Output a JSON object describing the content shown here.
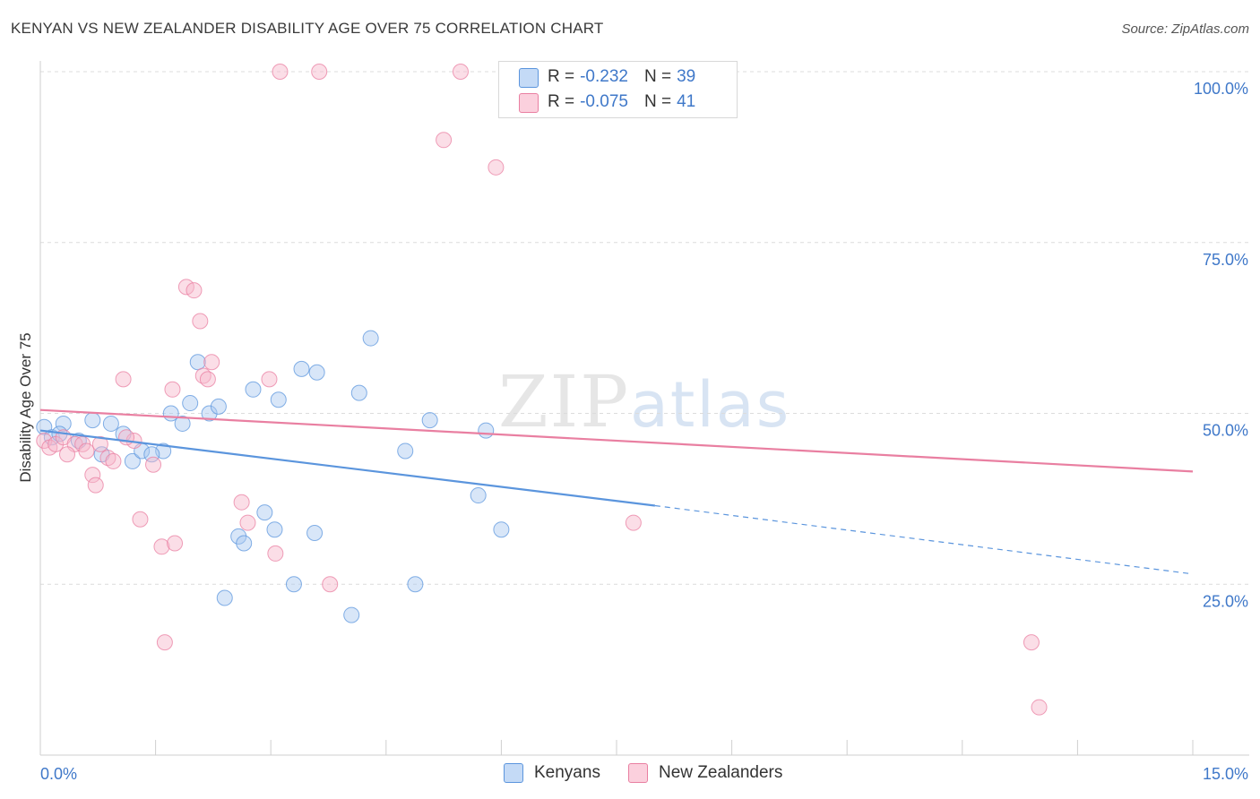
{
  "header": {
    "title": "KENYAN VS NEW ZEALANDER DISABILITY AGE OVER 75 CORRELATION CHART",
    "source": "Source: ZipAtlas.com"
  },
  "watermark": {
    "zip": "ZIP",
    "atlas": "atlas"
  },
  "legend": {
    "rows": [
      {
        "r_label": "R =",
        "r_value": "-0.232",
        "n_label": "N =",
        "n_value": "39",
        "color": "#a9c8f0"
      },
      {
        "r_label": "R =",
        "r_value": "-0.075",
        "n_label": "N =",
        "n_value": "41",
        "color": "#f6b6ca"
      }
    ]
  },
  "bottom_legend": [
    {
      "label": "Kenyans",
      "color": "#a9c8f0"
    },
    {
      "label": "New Zealanders",
      "color": "#f6b6ca"
    }
  ],
  "chart_data": {
    "type": "scatter",
    "title": "KENYAN VS NEW ZEALANDER DISABILITY AGE OVER 75 CORRELATION CHART",
    "xlabel": "",
    "ylabel": "Disability Age Over 75",
    "xlim": [
      0,
      15
    ],
    "ylim": [
      0,
      100
    ],
    "x_tick_labels": [
      "0.0%",
      "15.0%"
    ],
    "y_ticks": [
      25,
      50,
      75,
      100
    ],
    "y_tick_labels": [
      "25.0%",
      "50.0%",
      "75.0%",
      "100.0%"
    ],
    "grid": "horizontal dashed",
    "legend_position": "top-center",
    "series": [
      {
        "name": "Kenyans",
        "color": "#5b95dd",
        "points": [
          [
            0.05,
            48.0
          ],
          [
            0.15,
            46.5
          ],
          [
            0.3,
            48.5
          ],
          [
            0.5,
            46.0
          ],
          [
            0.68,
            49.0
          ],
          [
            0.8,
            44.0
          ],
          [
            0.92,
            48.5
          ],
          [
            1.08,
            47.0
          ],
          [
            1.2,
            43.0
          ],
          [
            1.32,
            44.5
          ],
          [
            1.6,
            44.5
          ],
          [
            1.7,
            50.0
          ],
          [
            1.85,
            48.5
          ],
          [
            1.95,
            51.5
          ],
          [
            2.05,
            57.5
          ],
          [
            2.2,
            50.0
          ],
          [
            2.32,
            51.0
          ],
          [
            2.4,
            23.0
          ],
          [
            2.58,
            32.0
          ],
          [
            2.65,
            31.0
          ],
          [
            2.77,
            53.5
          ],
          [
            2.92,
            35.5
          ],
          [
            3.05,
            33.0
          ],
          [
            3.1,
            52.0
          ],
          [
            3.3,
            25.0
          ],
          [
            3.4,
            56.5
          ],
          [
            3.57,
            32.5
          ],
          [
            3.6,
            56.0
          ],
          [
            4.05,
            20.5
          ],
          [
            4.15,
            53.0
          ],
          [
            4.3,
            61.0
          ],
          [
            4.75,
            44.5
          ],
          [
            4.88,
            25.0
          ],
          [
            5.07,
            49.0
          ],
          [
            5.7,
            38.0
          ],
          [
            5.8,
            47.5
          ],
          [
            6.0,
            33.0
          ],
          [
            0.25,
            47.0
          ],
          [
            1.45,
            44.0
          ]
        ],
        "trend": {
          "x": [
            0,
            8.0
          ],
          "y": [
            47.5,
            36.5
          ],
          "dashed_to": [
            15,
            26.5
          ]
        }
      },
      {
        "name": "New Zealanders",
        "color": "#e97fa1",
        "points": [
          [
            0.05,
            46.0
          ],
          [
            0.12,
            45.0
          ],
          [
            0.2,
            45.5
          ],
          [
            0.3,
            46.5
          ],
          [
            0.45,
            45.5
          ],
          [
            0.55,
            45.5
          ],
          [
            0.68,
            41.0
          ],
          [
            0.72,
            39.5
          ],
          [
            0.78,
            45.5
          ],
          [
            0.88,
            43.5
          ],
          [
            0.95,
            43.0
          ],
          [
            1.08,
            55.0
          ],
          [
            1.22,
            46.0
          ],
          [
            1.3,
            34.5
          ],
          [
            1.47,
            42.5
          ],
          [
            1.58,
            30.5
          ],
          [
            1.62,
            16.5
          ],
          [
            1.72,
            53.5
          ],
          [
            1.75,
            31.0
          ],
          [
            1.9,
            68.5
          ],
          [
            2.0,
            68.0
          ],
          [
            2.08,
            63.5
          ],
          [
            2.12,
            55.5
          ],
          [
            2.18,
            55.0
          ],
          [
            2.23,
            57.5
          ],
          [
            2.62,
            37.0
          ],
          [
            2.7,
            34.0
          ],
          [
            2.98,
            55.0
          ],
          [
            3.06,
            29.5
          ],
          [
            3.12,
            100.0
          ],
          [
            3.63,
            100.0
          ],
          [
            3.77,
            25.0
          ],
          [
            5.25,
            90.0
          ],
          [
            5.47,
            100.0
          ],
          [
            5.93,
            86.0
          ],
          [
            7.72,
            34.0
          ],
          [
            12.9,
            16.5
          ],
          [
            13.0,
            7.0
          ],
          [
            0.35,
            44.0
          ],
          [
            0.6,
            44.5
          ],
          [
            1.12,
            46.5
          ]
        ],
        "trend": {
          "x": [
            0,
            15
          ],
          "y": [
            50.5,
            41.5
          ]
        }
      }
    ]
  }
}
